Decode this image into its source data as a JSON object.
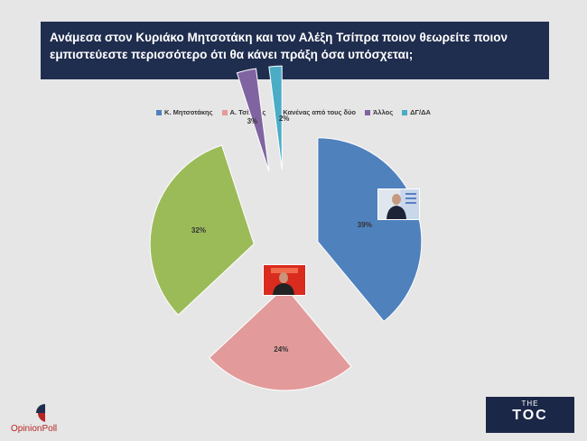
{
  "title": "Ανάμεσα στον Κυριάκο Μητσοτάκη και τον Αλέξη Τσίπρα ποιον θεωρείτε ποιον εμπιστεύεστε περισσότερο ότι θα κάνει πράξη όσα υπόσχεται;",
  "chart_data": {
    "type": "pie",
    "exploded": true,
    "categories": [
      "Κ. Μητσοτάκης",
      "Α. Τσίπρας",
      "Κανένας από τους δύο",
      "Άλλος",
      "ΔΓ/ΔΑ"
    ],
    "values": [
      39,
      24,
      32,
      3,
      2
    ],
    "labels": [
      "39%",
      "24%",
      "32%",
      "3%",
      "2%"
    ],
    "colors": [
      "#4f81bd",
      "#e29a9a",
      "#9bbb59",
      "#8064a2",
      "#4bacc6"
    ],
    "legend_position": "top"
  },
  "branding": {
    "pollster": "OpinionPoll",
    "channel_small": "THE",
    "channel_main": "TOC"
  }
}
